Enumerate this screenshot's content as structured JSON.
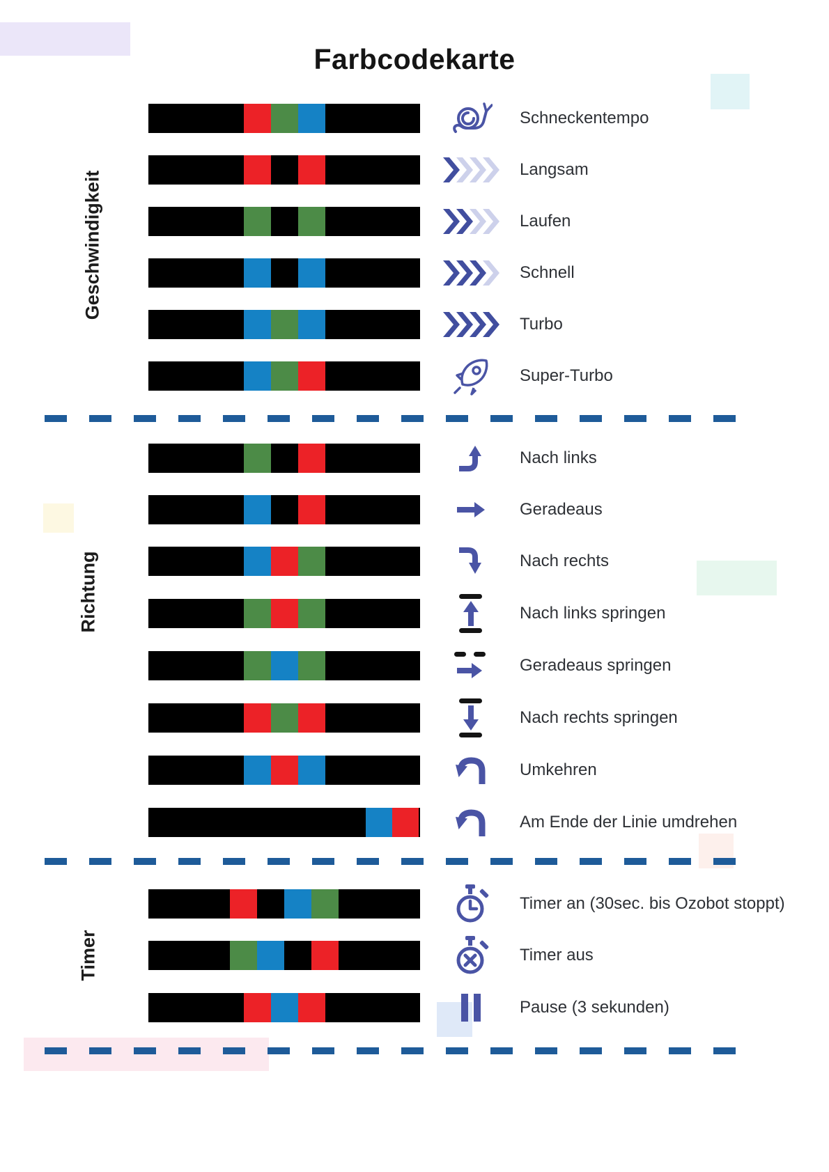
{
  "title": "Farbcodekarte",
  "colors": {
    "red": "#ec2227",
    "green": "#4c8b47",
    "blue": "#1582c5",
    "black": "#000000",
    "icon_indigo": "#4a54a5",
    "chevron_dark": "#414e9f",
    "chevron_light": "#cdd1eb",
    "separator_blue": "#1e5b99",
    "label_text": "#2e3136"
  },
  "decor_colors": {
    "lavender": "#ebe6f9",
    "cyan": "#e1f4f6",
    "yellow": "#fdf8e2",
    "mint": "#e7f7ee",
    "peach": "#fdf0ec",
    "pink": "#fce9ef",
    "light_blue": "#dfe9f8"
  },
  "sections": [
    {
      "label": "Geschwindigkeit",
      "rows": [
        {
          "label": "Schneckentempo",
          "icon": "snail-icon",
          "bar": {
            "offset": 137,
            "segments": [
              "red",
              "green",
              "blue"
            ]
          }
        },
        {
          "label": "Langsam",
          "icon": "speed-chevrons-icon",
          "chevron_dark_count": 1,
          "bar": {
            "offset": 137,
            "segments": [
              "red",
              "black",
              "red"
            ]
          }
        },
        {
          "label": "Laufen",
          "icon": "speed-chevrons-icon",
          "chevron_dark_count": 2,
          "bar": {
            "offset": 137,
            "segments": [
              "green",
              "black",
              "green"
            ]
          }
        },
        {
          "label": "Schnell",
          "icon": "speed-chevrons-icon",
          "chevron_dark_count": 3,
          "bar": {
            "offset": 137,
            "segments": [
              "blue",
              "black",
              "blue"
            ]
          }
        },
        {
          "label": "Turbo",
          "icon": "speed-chevrons-icon",
          "chevron_dark_count": 4,
          "bar": {
            "offset": 137,
            "segments": [
              "blue",
              "green",
              "blue"
            ]
          }
        },
        {
          "label": "Super-Turbo",
          "icon": "rocket-icon",
          "bar": {
            "offset": 137,
            "segments": [
              "blue",
              "green",
              "red"
            ]
          }
        }
      ]
    },
    {
      "label": "Richtung",
      "rows": [
        {
          "label": "Nach links",
          "icon": "turn-left-arrow-icon",
          "bar": {
            "offset": 137,
            "segments": [
              "green",
              "black",
              "red"
            ]
          }
        },
        {
          "label": "Geradeaus",
          "icon": "straight-arrow-icon",
          "bar": {
            "offset": 137,
            "segments": [
              "blue",
              "black",
              "red"
            ]
          }
        },
        {
          "label": "Nach rechts",
          "icon": "turn-right-arrow-icon",
          "bar": {
            "offset": 137,
            "segments": [
              "blue",
              "red",
              "green"
            ]
          }
        },
        {
          "label": "Nach links springen",
          "icon": "jump-left-icon",
          "bar": {
            "offset": 137,
            "segments": [
              "green",
              "red",
              "green"
            ]
          }
        },
        {
          "label": "Geradeaus springen",
          "icon": "jump-straight-icon",
          "bar": {
            "offset": 137,
            "segments": [
              "green",
              "blue",
              "green"
            ]
          }
        },
        {
          "label": "Nach rechts springen",
          "icon": "jump-right-icon",
          "bar": {
            "offset": 137,
            "segments": [
              "red",
              "green",
              "red"
            ]
          }
        },
        {
          "label": "Umkehren",
          "icon": "u-turn-icon",
          "bar": {
            "offset": 137,
            "segments": [
              "blue",
              "red",
              "blue"
            ]
          }
        },
        {
          "label": "Am Ende der Linie umdrehen",
          "icon": "u-turn-icon",
          "bar": {
            "offset": 312,
            "segWidth": 38,
            "segments": [
              "blue",
              "red"
            ]
          }
        }
      ]
    },
    {
      "label": "Timer",
      "rows": [
        {
          "label": "Timer an (30sec. bis Ozobot stoppt)",
          "icon": "timer-on-icon",
          "bar": {
            "offset": 117,
            "segments": [
              "red",
              "black",
              "blue",
              "green"
            ]
          }
        },
        {
          "label": "Timer aus",
          "icon": "timer-off-icon",
          "bar": {
            "offset": 117,
            "segments": [
              "green",
              "blue",
              "black",
              "red"
            ]
          }
        },
        {
          "label": "Pause (3 sekunden)",
          "icon": "pause-icon",
          "bar": {
            "offset": 137,
            "segments": [
              "red",
              "blue",
              "red"
            ]
          }
        }
      ]
    }
  ]
}
